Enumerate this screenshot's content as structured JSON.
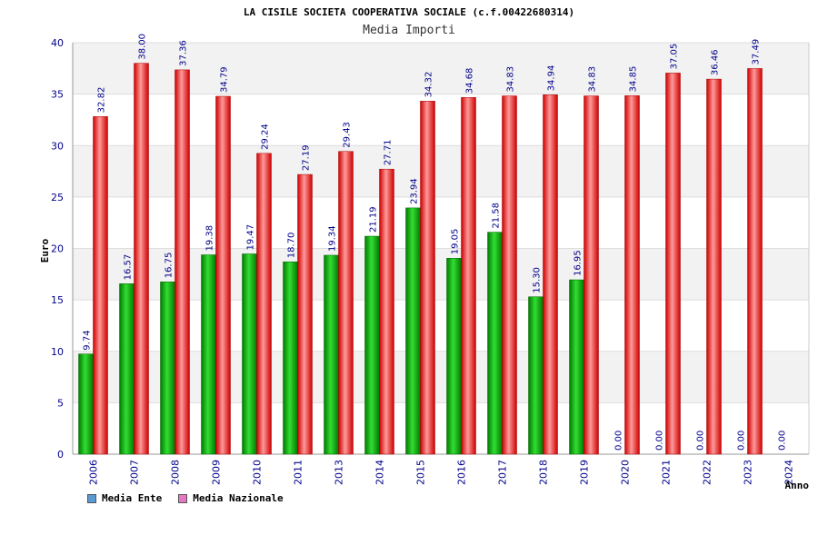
{
  "chart_data": {
    "type": "bar",
    "title": "LA CISILE SOCIETA COOPERATIVA SOCIALE (c.f.00422680314)",
    "subtitle": "Media Importi",
    "ylabel": "Euro",
    "xlabel": "Anno",
    "ylim": [
      0,
      40
    ],
    "yticks": [
      0,
      5,
      10,
      15,
      20,
      25,
      30,
      35,
      40
    ],
    "categories": [
      "2006",
      "2007",
      "2008",
      "2009",
      "2010",
      "2011",
      "2013",
      "2014",
      "2015",
      "2016",
      "2017",
      "2018",
      "2019",
      "2020",
      "2021",
      "2022",
      "2023",
      "2024"
    ],
    "series": [
      {
        "name": "Media Ente",
        "values": [
          9.74,
          16.57,
          16.75,
          19.38,
          19.47,
          18.7,
          19.34,
          21.19,
          23.94,
          19.05,
          21.58,
          15.3,
          16.95,
          0,
          0,
          0,
          0,
          0
        ],
        "labels": [
          "9.74",
          "16.57",
          "16.75",
          "19.38",
          "19.47",
          "18.70",
          "19.34",
          "21.19",
          "23.94",
          "19.05",
          "21.58",
          "15.30",
          "16.95",
          "0.00",
          "0.00",
          "0.00",
          "0.00",
          "0.00"
        ]
      },
      {
        "name": "Media Nazionale",
        "values": [
          32.82,
          38.0,
          37.36,
          34.79,
          29.24,
          27.19,
          29.43,
          27.71,
          34.32,
          34.68,
          34.83,
          34.94,
          34.83,
          34.85,
          37.05,
          36.46,
          37.49,
          null
        ],
        "labels": [
          "32.82",
          "38.00",
          "37.36",
          "34.79",
          "29.24",
          "27.19",
          "29.43",
          "27.71",
          "34.32",
          "34.68",
          "34.83",
          "34.94",
          "34.83",
          "34.85",
          "37.05",
          "36.46",
          "37.49",
          null
        ]
      }
    ],
    "legend_position": "bottom-left"
  },
  "legend": {
    "items": [
      {
        "label": "Media Ente",
        "color": "#5b9bd5"
      },
      {
        "label": "Media Nazionale",
        "color": "#e377c2"
      }
    ]
  },
  "colors": {
    "ente_dark": "#007a00",
    "ente_light": "#33dd33",
    "naz_dark": "#cc0000",
    "naz_light": "#ff9999",
    "grid_band": "#f2f2f2",
    "label": "#00008b"
  }
}
